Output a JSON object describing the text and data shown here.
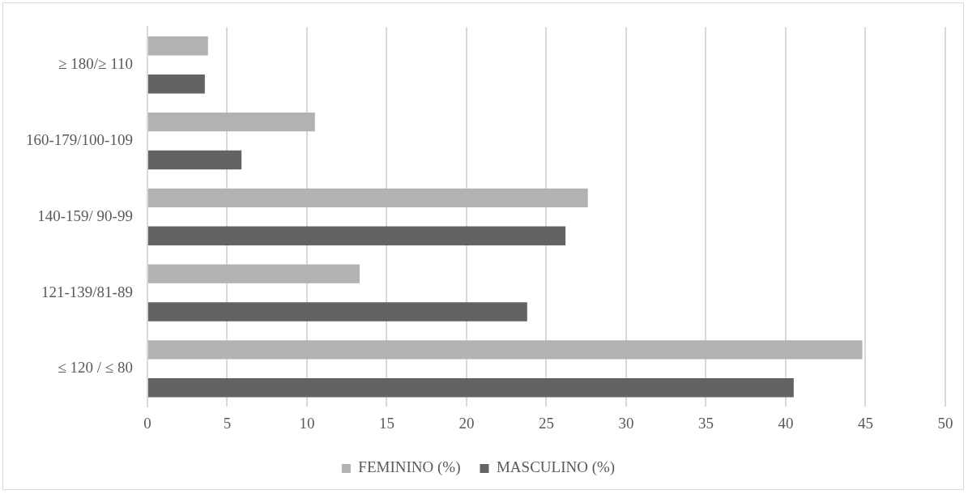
{
  "chart_data": {
    "type": "bar",
    "orientation": "horizontal",
    "categories": [
      "≥ 180/≥ 110",
      "160-179/100-109",
      "140-159/ 90-99",
      "121-139/81-89",
      "≤ 120 / ≤ 80"
    ],
    "series": [
      {
        "name": "FEMININO (%)",
        "color": "#b2b2b2",
        "values": [
          3.8,
          10.5,
          27.6,
          13.3,
          44.8
        ]
      },
      {
        "name": "MASCULINO (%)",
        "color": "#636363",
        "values": [
          3.6,
          5.9,
          26.2,
          23.8,
          40.5
        ]
      }
    ],
    "xlim": [
      0,
      50
    ],
    "xticks": [
      0,
      5,
      10,
      15,
      20,
      25,
      30,
      35,
      40,
      45,
      50
    ],
    "grid": "x",
    "legend": "bottom"
  }
}
